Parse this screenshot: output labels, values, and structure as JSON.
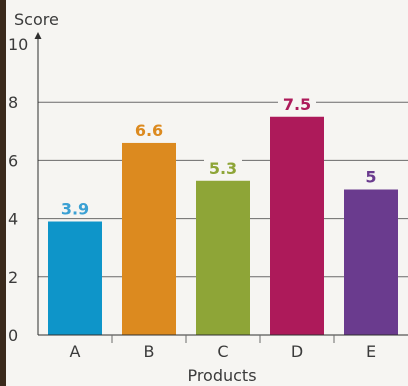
{
  "chart_data": {
    "type": "bar",
    "title": "",
    "xlabel": "Products",
    "ylabel": "Score",
    "categories": [
      "A",
      "B",
      "C",
      "D",
      "E"
    ],
    "values": [
      3.9,
      6.6,
      5.3,
      7.5,
      5
    ],
    "value_labels": [
      "3.9",
      "6.6",
      "5.3",
      "7.5",
      "5"
    ],
    "colors": [
      "#0e95c9",
      "#dc8a1f",
      "#8ea537",
      "#ad1a5a",
      "#6a3b8e"
    ],
    "label_colors": [
      "#3ba0d3",
      "#dc8a1f",
      "#8ea537",
      "#ad1a5a",
      "#6a3b8e"
    ],
    "ylim": [
      0,
      10
    ],
    "yticks": [
      0,
      2,
      4,
      6,
      8,
      10
    ],
    "ytick_labels": [
      "0",
      "2",
      "4",
      "6",
      "8",
      "10"
    ],
    "grid": true,
    "legend": false
  }
}
